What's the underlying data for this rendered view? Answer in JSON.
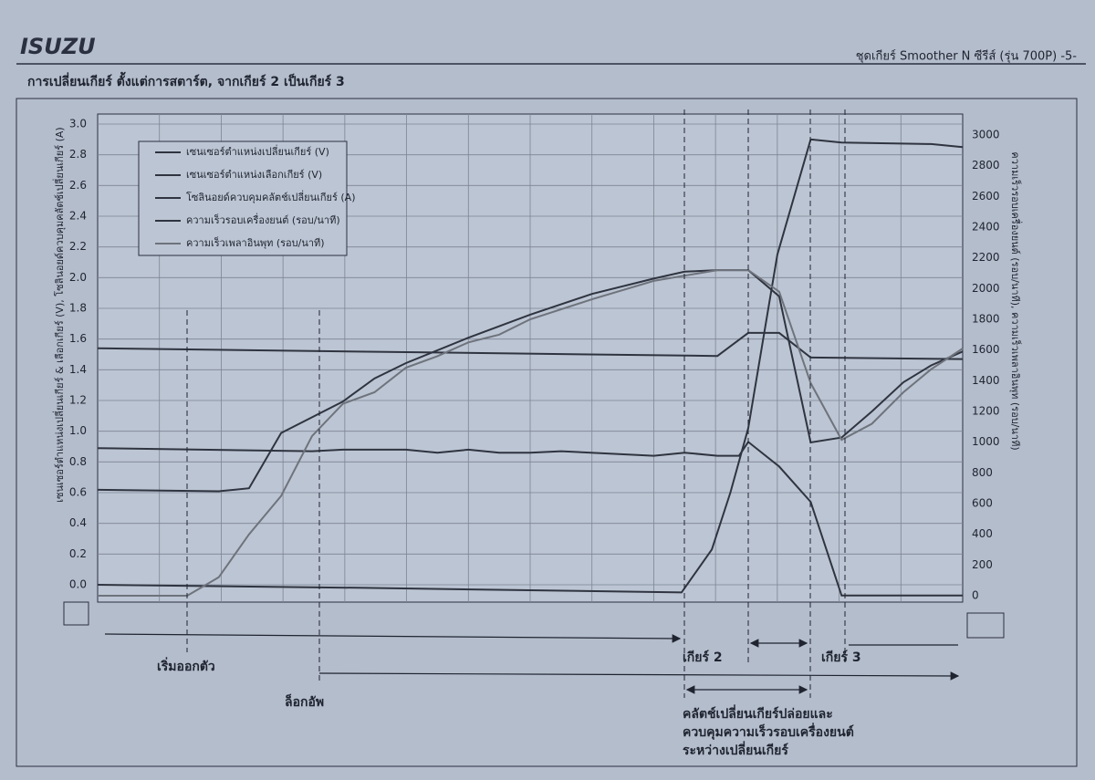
{
  "header": {
    "brand": "ISUZU",
    "page_title": "ชุดเกียร์ Smoother N ซีรีส์ (รุ่น 700P) -5-",
    "section_title": "การเปลี่ยนเกียร์ ตั้งแต่การสตาร์ต, จากเกียร์ 2 เป็นเกียร์ 3"
  },
  "annotations": {
    "start": "เริ่มออกตัว",
    "lockup": "ล็อกอัพ",
    "gear2": "เกียร์ 2",
    "gear3": "เกียร์ 3",
    "clutch": [
      "คลัตช์เปลี่ยนเกียร์ปล่อยและ",
      "ควบคุมความเร็วรอบเครื่องยนต์",
      "ระหว่างเปลี่ยนเกียร์"
    ]
  },
  "chart_data": {
    "type": "line",
    "ylabel": "เซนเซอร์ตำแหน่งเปลี่ยนเกียร์ & เลือกเกียร์ (V), โซลินอยด์ควบคุมคลัตช์เปลี่ยนเกียร์ (A)",
    "y2label": "ความเร็วรอบเครื่องยนต์ (รอบ/นาที), ความเร็วเพลาอินพุท (รอบ/นาที)",
    "xlim": [
      0,
      14
    ],
    "grid": true,
    "ylim": [
      0,
      3
    ],
    "yticks": [
      {
        "value": 0,
        "label": "0.0"
      },
      0.2,
      0.4,
      0.6,
      0.8,
      {
        "value": 1,
        "label": "1.0"
      },
      1.2,
      1.4,
      1.6,
      1.8,
      {
        "value": 2,
        "label": "2.0"
      },
      2.2,
      2.4,
      2.6,
      2.8,
      {
        "value": 3,
        "label": "3.0"
      }
    ],
    "y2lim": [
      0,
      3000
    ],
    "y2ticks": [
      0,
      200,
      400,
      600,
      800,
      1000,
      1200,
      1400,
      1600,
      1800,
      2000,
      2200,
      2400,
      2600,
      2800,
      3000
    ],
    "legend": "upper left",
    "series": [
      {
        "name": "เซนเซอร์ตำแหน่งเปลี่ยนเกียร์ (V)",
        "color": "#2f3440",
        "axis": "y",
        "x": [
          0,
          3.47,
          3.97,
          4.99,
          5.5,
          6.0,
          6.5,
          7.0,
          7.5,
          9.0,
          9.5,
          10.03,
          10.38,
          10.53,
          11.03,
          11.54,
          12.04,
          14
        ],
        "values": [
          0.89,
          0.87,
          0.88,
          0.88,
          0.86,
          0.88,
          0.86,
          0.86,
          0.87,
          0.84,
          0.86,
          0.84,
          0.84,
          0.93,
          0.77,
          0.54,
          -0.07,
          -0.07
        ]
      },
      {
        "name": "เซนเซอร์ตำแหน่งเลือกเกียร์ (V)",
        "color": "#2f3440",
        "axis": "y",
        "x": [
          0,
          10.03,
          10.53,
          11.03,
          11.54,
          14
        ],
        "values": [
          1.54,
          1.49,
          1.64,
          1.64,
          1.48,
          1.47
        ]
      },
      {
        "name": "โซลินอยด์ควบคุมคลัตช์เปลี่ยนเกียร์ (A)",
        "color": "#2f3440",
        "axis": "y",
        "x": [
          0,
          4.33,
          9.45,
          9.94,
          10.24,
          10.53,
          11.0,
          11.54,
          12.04,
          13.49,
          14
        ],
        "values": [
          0.0,
          -0.02,
          -0.05,
          0.23,
          0.6,
          1.02,
          2.15,
          2.9,
          2.88,
          2.87,
          2.85
        ]
      },
      {
        "name": "ความเร็วรอบเครื่องยนต์ (รอบ/นาที)",
        "color": "#2f3440",
        "axis": "y2",
        "x": [
          0,
          1.96,
          2.45,
          2.97,
          3.97,
          4.48,
          4.99,
          6.0,
          7.0,
          8.0,
          9.0,
          9.5,
          10.03,
          10.53,
          11.03,
          11.54,
          12.04,
          12.53,
          13.04,
          13.49,
          14
        ],
        "values": [
          690,
          680,
          700,
          1060,
          1265,
          1415,
          1515,
          1680,
          1830,
          1965,
          2065,
          2110,
          2120,
          2120,
          1950,
          998,
          1030,
          1200,
          1390,
          1500,
          1590
        ]
      },
      {
        "name": "ความเร็วเพลาอินพุท (รอบ/นาที)",
        "color": "#6e737c",
        "axis": "y2",
        "x": [
          0,
          1.45,
          1.96,
          2.45,
          2.97,
          3.47,
          3.97,
          4.48,
          4.99,
          5.5,
          6.0,
          6.5,
          7.0,
          8.0,
          9.0,
          10.03,
          10.53,
          11.03,
          11.54,
          12.04,
          12.53,
          13.04,
          13.49,
          14
        ],
        "values": [
          0,
          0,
          120,
          400,
          650,
          1040,
          1250,
          1325,
          1485,
          1560,
          1650,
          1700,
          1800,
          1930,
          2050,
          2120,
          2120,
          1980,
          1385,
          1015,
          1120,
          1325,
          1475,
          1610
        ]
      }
    ]
  }
}
